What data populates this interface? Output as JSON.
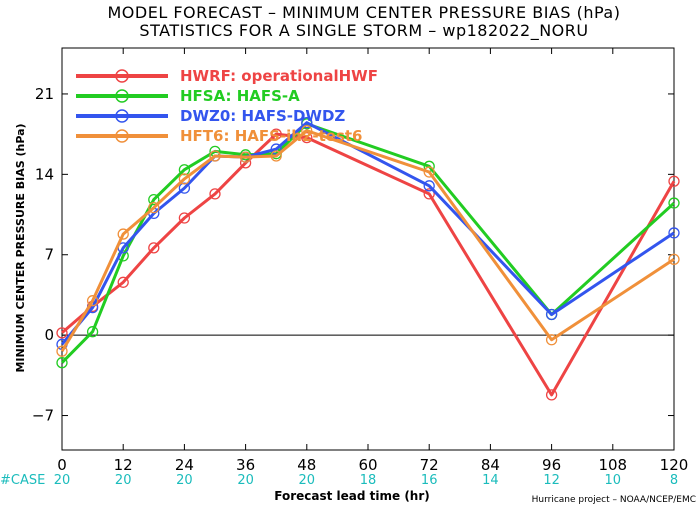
{
  "chart_data": {
    "type": "line",
    "title": "MODEL FORECAST – MINIMUM CENTER PRESSURE BIAS (hPa)",
    "subtitle": "STATISTICS FOR A SINGLE STORM – wp182022_NORU",
    "xlabel": "Forecast lead time (hr)",
    "ylabel": "MINIMUM CENTER PRESSURE BIAS (hPa)",
    "xlim": [
      0,
      120
    ],
    "ylim": [
      -10,
      25
    ],
    "x_ticks": [
      0,
      12,
      24,
      36,
      48,
      60,
      72,
      84,
      96,
      108,
      120
    ],
    "y_ticks": [
      -7,
      0,
      7,
      14,
      21
    ],
    "zero_line": true,
    "grid": false,
    "legend_position": "top-left",
    "case_label": "#CASE",
    "cases": [
      20,
      20,
      20,
      20,
      20,
      18,
      16,
      14,
      12,
      10,
      8
    ],
    "case_color": "#1bbcbc",
    "credit": "Hurricane project – NOAA/NCEP/EMC",
    "series": [
      {
        "name": "HWRF: operationalHWF",
        "color": "#ee4444",
        "points": [
          [
            0,
            0.2
          ],
          [
            6,
            2.5
          ],
          [
            12,
            4.6
          ],
          [
            18,
            7.6
          ],
          [
            24,
            10.2
          ],
          [
            30,
            12.3
          ],
          [
            36,
            15.0
          ],
          [
            42,
            17.5
          ],
          [
            48,
            17.2
          ],
          [
            72,
            12.3
          ],
          [
            96,
            -5.2
          ],
          [
            120,
            13.4
          ]
        ]
      },
      {
        "name": "HFSA: HAFS-A",
        "color": "#22cc22",
        "points": [
          [
            0,
            -2.4
          ],
          [
            6,
            0.3
          ],
          [
            12,
            6.9
          ],
          [
            18,
            11.8
          ],
          [
            24,
            14.4
          ],
          [
            30,
            16.0
          ],
          [
            36,
            15.7
          ],
          [
            42,
            15.8
          ],
          [
            48,
            18.4
          ],
          [
            72,
            14.7
          ],
          [
            96,
            1.8
          ],
          [
            120,
            11.5
          ]
        ]
      },
      {
        "name": "DWZ0: HAFS-DWDZ",
        "color": "#3355ee",
        "points": [
          [
            0,
            -0.8
          ],
          [
            6,
            2.4
          ],
          [
            12,
            7.6
          ],
          [
            18,
            10.6
          ],
          [
            24,
            12.8
          ],
          [
            30,
            15.6
          ],
          [
            36,
            15.5
          ],
          [
            42,
            16.2
          ],
          [
            48,
            18.5
          ],
          [
            72,
            13.0
          ],
          [
            96,
            1.8
          ],
          [
            120,
            8.9
          ]
        ]
      },
      {
        "name": "HFT6: HAFS-ih2-test6",
        "color": "#f0903a",
        "points": [
          [
            0,
            -1.4
          ],
          [
            6,
            3.0
          ],
          [
            12,
            8.8
          ],
          [
            18,
            11.1
          ],
          [
            24,
            13.6
          ],
          [
            30,
            15.6
          ],
          [
            36,
            15.5
          ],
          [
            42,
            15.6
          ],
          [
            48,
            17.8
          ],
          [
            72,
            14.2
          ],
          [
            96,
            -0.4
          ],
          [
            120,
            6.6
          ]
        ]
      }
    ]
  }
}
